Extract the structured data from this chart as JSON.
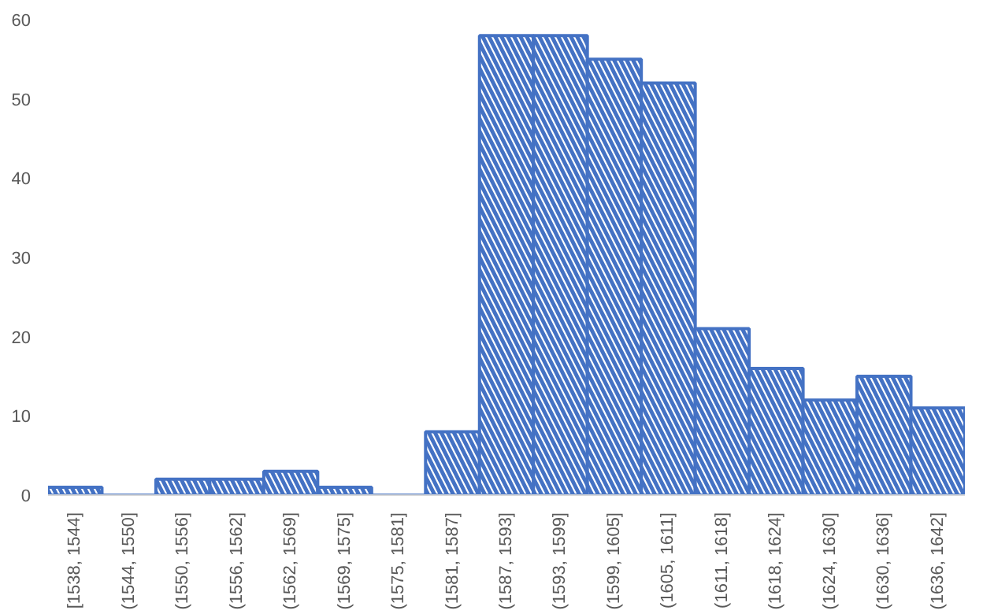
{
  "chart_data": {
    "type": "bar",
    "categories": [
      "[1538, 1544]",
      "(1544, 1550]",
      "(1550, 1556]",
      "(1556, 1562]",
      "(1562, 1569]",
      "(1569, 1575]",
      "(1575, 1581]",
      "(1581, 1587]",
      "(1587, 1593]",
      "(1593, 1599]",
      "(1599, 1605]",
      "(1605, 1611]",
      "(1611, 1618]",
      "(1618, 1624]",
      "(1624, 1630]",
      "(1630, 1636]",
      "(1636, 1642]"
    ],
    "values": [
      1,
      0,
      2,
      2,
      3,
      1,
      0,
      8,
      58,
      58,
      55,
      52,
      21,
      16,
      12,
      15,
      11
    ],
    "color": "#4472c4",
    "ylim": [
      0,
      60
    ],
    "yticks": [
      0,
      10,
      20,
      30,
      40,
      50,
      60
    ],
    "grid": false
  }
}
